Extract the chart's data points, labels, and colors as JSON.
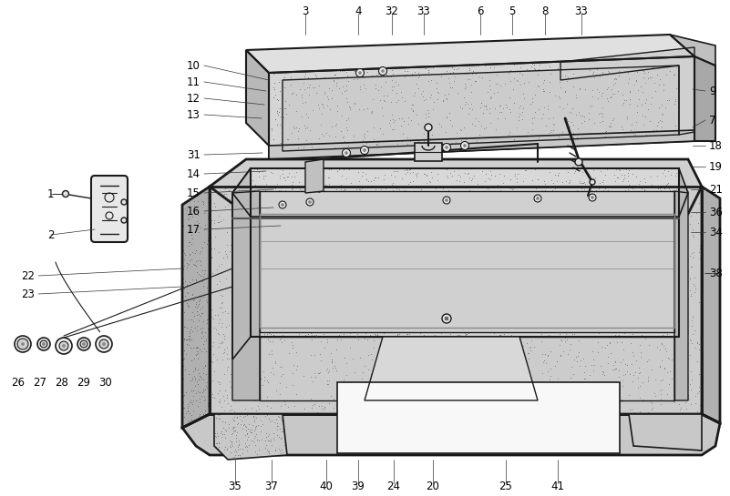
{
  "bg_color": "#ffffff",
  "lc": "#1a1a1a",
  "stipple_color": "#888888",
  "fill_light": "#d8d8d8",
  "fill_medium": "#c0c0c0",
  "fill_dark": "#a8a8a8",
  "fill_white": "#f5f5f5",
  "top_labels": [
    [
      335,
      12,
      "3"
    ],
    [
      393,
      12,
      "4"
    ],
    [
      430,
      12,
      "32"
    ],
    [
      465,
      12,
      "33"
    ],
    [
      527,
      12,
      "6"
    ],
    [
      562,
      12,
      "5"
    ],
    [
      598,
      12,
      "8"
    ],
    [
      638,
      12,
      "33"
    ]
  ],
  "left_labels": [
    [
      220,
      72,
      "10"
    ],
    [
      220,
      90,
      "11"
    ],
    [
      220,
      108,
      "12"
    ],
    [
      220,
      126,
      "13"
    ],
    [
      220,
      170,
      "31"
    ],
    [
      220,
      191,
      "14"
    ],
    [
      220,
      212,
      "15"
    ],
    [
      220,
      232,
      "16"
    ],
    [
      220,
      252,
      "17"
    ]
  ],
  "right_labels": [
    [
      778,
      100,
      "9"
    ],
    [
      778,
      132,
      "7"
    ],
    [
      778,
      160,
      "18"
    ],
    [
      778,
      183,
      "19"
    ],
    [
      778,
      208,
      "21"
    ],
    [
      778,
      233,
      "36"
    ],
    [
      778,
      255,
      "34"
    ],
    [
      778,
      300,
      "38"
    ]
  ],
  "bottom_labels": [
    [
      258,
      534,
      "35"
    ],
    [
      298,
      534,
      "37"
    ],
    [
      358,
      534,
      "40"
    ],
    [
      393,
      534,
      "39"
    ],
    [
      432,
      534,
      "24"
    ],
    [
      475,
      534,
      "20"
    ],
    [
      555,
      534,
      "25"
    ],
    [
      612,
      534,
      "41"
    ]
  ],
  "side_labels": [
    [
      52,
      213,
      "1"
    ],
    [
      52,
      258,
      "2"
    ],
    [
      38,
      303,
      "22"
    ],
    [
      38,
      323,
      "23"
    ],
    [
      20,
      420,
      "26"
    ],
    [
      44,
      420,
      "27"
    ],
    [
      68,
      420,
      "28"
    ],
    [
      92,
      420,
      "29"
    ],
    [
      116,
      420,
      "30"
    ]
  ]
}
